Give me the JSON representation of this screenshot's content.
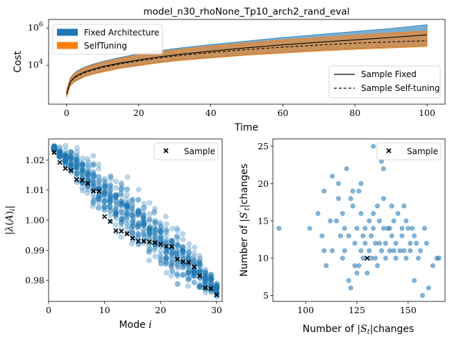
{
  "chart_data": [
    {
      "id": "cost",
      "type": "area",
      "title": "model_n30_rhoNone_Tp10_arch2_rand_eval",
      "xlabel": "Time",
      "ylabel": "Cost",
      "yscale": "log",
      "xlim": [
        -5,
        105
      ],
      "xticks": [
        0,
        20,
        40,
        60,
        80,
        100
      ],
      "yticks": [
        {
          "value": 10000,
          "label": "10^4"
        },
        {
          "value": 1000000,
          "label": "10^6"
        }
      ],
      "x": [
        0,
        1,
        2,
        3,
        5,
        7,
        10,
        15,
        20,
        25,
        30,
        40,
        50,
        60,
        70,
        80,
        90,
        100
      ],
      "series": [
        {
          "name": "Fixed Architecture",
          "kind": "band",
          "color": "#1f77b4",
          "lower": [
            150,
            600,
            900,
            1200,
            1800,
            2400,
            3200,
            5000,
            7000,
            9500,
            12500,
            18000,
            25000,
            33000,
            42000,
            52000,
            62000,
            75000
          ],
          "upper": [
            350,
            1500,
            2500,
            3500,
            5500,
            7500,
            11000,
            18000,
            27000,
            38000,
            52000,
            85000,
            130000,
            200000,
            290000,
            420000,
            600000,
            950000
          ]
        },
        {
          "name": "SelfTuning",
          "kind": "band",
          "color": "#ff7f0e",
          "lower": [
            140,
            550,
            850,
            1100,
            1700,
            2200,
            3000,
            4700,
            6500,
            8800,
            11500,
            16500,
            23000,
            30000,
            38000,
            47000,
            56000,
            66000
          ],
          "upper": [
            330,
            1400,
            2300,
            3200,
            5000,
            6800,
            10000,
            16000,
            24000,
            33000,
            44000,
            70000,
            105000,
            150000,
            200000,
            270000,
            350000,
            440000
          ]
        },
        {
          "name": "Sample Fixed",
          "kind": "line",
          "style": "solid",
          "color": "#000000",
          "values": [
            210,
            900,
            1500,
            2000,
            3000,
            4000,
            5800,
            9000,
            13000,
            18000,
            24000,
            38000,
            57000,
            82000,
            112000,
            150000,
            200000,
            275000
          ]
        },
        {
          "name": "Sample Self-tuning",
          "kind": "line",
          "style": "dashed",
          "color": "#000000",
          "values": [
            200,
            850,
            1400,
            1850,
            2800,
            3700,
            5300,
            8200,
            11500,
            16000,
            21000,
            32000,
            46000,
            62000,
            80000,
            100000,
            118000,
            135000
          ]
        }
      ],
      "legend_bands_position": "top-left",
      "legend_lines_position": "bottom-right"
    },
    {
      "id": "modes",
      "type": "scatter",
      "xlabel": "Mode i",
      "ylabel": "|λ(A)_i|",
      "xlim": [
        0,
        31
      ],
      "ylim": [
        0.973,
        1.027
      ],
      "xticks": [
        0,
        10,
        20,
        30
      ],
      "yticks": [
        0.98,
        0.99,
        1.0,
        1.01,
        1.02
      ],
      "ytick_labels": [
        "0.98",
        "0.99",
        "1.00",
        "1.01",
        "1.02"
      ],
      "cloud": {
        "color": "#1f77b4",
        "alpha": 0.3,
        "per_mode": 30,
        "center": [
          1.0238,
          1.0222,
          1.0206,
          1.019,
          1.0174,
          1.0158,
          1.0142,
          1.0126,
          1.011,
          1.0094,
          1.0078,
          1.0062,
          1.0046,
          1.003,
          1.0014,
          0.9998,
          0.9982,
          0.9966,
          0.995,
          0.9934,
          0.9918,
          0.9902,
          0.9886,
          0.987,
          0.9854,
          0.9838,
          0.9822,
          0.9806,
          0.979,
          0.9774
        ],
        "spread": [
          0.0012,
          0.0022,
          0.0032,
          0.0042,
          0.005,
          0.0058,
          0.0064,
          0.007,
          0.0074,
          0.0077,
          0.0079,
          0.008,
          0.008,
          0.008,
          0.008,
          0.008,
          0.008,
          0.008,
          0.008,
          0.008,
          0.0079,
          0.0077,
          0.0074,
          0.007,
          0.0064,
          0.0058,
          0.005,
          0.0042,
          0.0032,
          0.0022
        ]
      },
      "sample": {
        "name": "Sample",
        "marker": "x",
        "color": "#000000",
        "x": [
          1,
          2,
          3,
          4,
          5,
          6,
          7,
          8,
          9,
          10,
          11,
          12,
          13,
          14,
          15,
          16,
          17,
          18,
          19,
          20,
          21,
          22,
          23,
          24,
          25,
          26,
          27,
          28,
          29,
          30
        ],
        "y": [
          1.0225,
          1.0192,
          1.0172,
          1.0165,
          1.0135,
          1.0133,
          1.0122,
          1.0097,
          1.0096,
          1.0012,
          0.9996,
          0.9965,
          0.9963,
          0.9955,
          0.994,
          0.993,
          0.993,
          0.9928,
          0.9925,
          0.992,
          0.9913,
          0.9912,
          0.987,
          0.9862,
          0.986,
          0.9845,
          0.9815,
          0.9775,
          0.9773,
          0.9752
        ]
      },
      "legend_position": "top-right"
    },
    {
      "id": "changes",
      "type": "scatter",
      "xlabel": "Number of |S_t|changes",
      "ylabel": "Number of |S'_t|changes",
      "xlim": [
        84,
        168
      ],
      "ylim": [
        4.2,
        26.0
      ],
      "xticks": [
        100,
        125,
        150
      ],
      "yticks": [
        5,
        10,
        15,
        20,
        25
      ],
      "points": {
        "color": "#1f77b4",
        "alpha": 0.55,
        "x": [
          87,
          102,
          106,
          108,
          109,
          109,
          110,
          112,
          113,
          113,
          115,
          116,
          117,
          118,
          118,
          119,
          119,
          120,
          121,
          121,
          122,
          123,
          123,
          124,
          124,
          125,
          125,
          126,
          127,
          127,
          127,
          128,
          128,
          129,
          129,
          130,
          131,
          131,
          132,
          132,
          133,
          133,
          134,
          134,
          135,
          135,
          136,
          136,
          137,
          137,
          138,
          138,
          139,
          139,
          140,
          141,
          141,
          142,
          142,
          143,
          143,
          144,
          144,
          145,
          146,
          147,
          147,
          148,
          148,
          149,
          149,
          150,
          151,
          151,
          152,
          153,
          153,
          154,
          155,
          156,
          157,
          158,
          159,
          160,
          162,
          164,
          165,
          133,
          140,
          116,
          126,
          138,
          122
        ],
        "y": [
          14,
          14,
          16,
          13,
          11,
          19,
          9,
          15,
          21,
          11,
          15,
          18,
          13,
          16,
          10,
          14,
          11,
          22,
          7,
          13,
          6,
          17,
          19,
          9,
          12,
          14,
          8,
          19,
          11,
          16,
          20,
          13,
          10,
          12,
          14,
          8,
          11,
          15,
          10,
          13,
          16,
          14,
          12,
          10,
          17,
          9,
          12,
          15,
          11,
          23,
          14,
          18,
          10,
          12,
          24,
          14,
          11,
          17,
          13,
          15,
          11,
          10,
          12,
          16,
          11,
          13,
          14,
          17,
          11,
          15,
          10,
          14,
          12,
          11,
          14,
          13,
          7,
          12,
          10,
          11,
          5,
          14,
          12,
          6,
          9,
          10,
          10,
          25,
          14,
          20,
          9,
          22,
          18
        ]
      },
      "sample": {
        "name": "Sample",
        "marker": "x",
        "color": "#000000",
        "x": [
          130
        ],
        "y": [
          10
        ]
      },
      "legend_position": "top-right"
    }
  ]
}
